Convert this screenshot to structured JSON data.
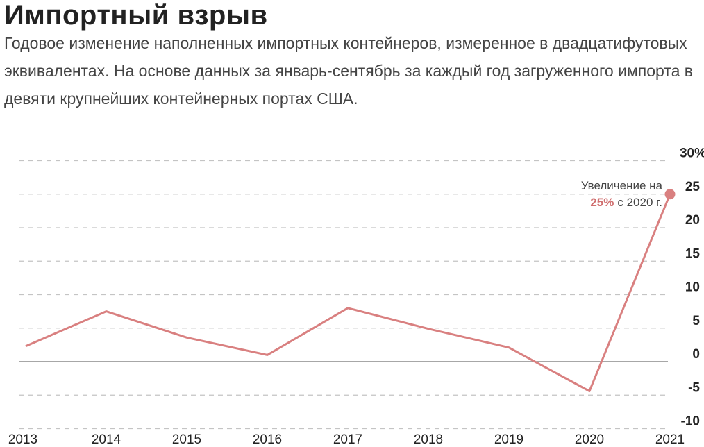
{
  "header": {
    "title": "Импортный взрыв",
    "subtitle": "Годовое изменение наполненных импортных контейнеров, измеренное в двадцатифутовых эквивалентах. На основе данных за январь-сентябрь за каждый год загруженного импорта в девяти крупнейших контейнерных портах США."
  },
  "chart_data": {
    "type": "line",
    "x": [
      "2013",
      "2014",
      "2015",
      "2016",
      "2017",
      "2018",
      "2019",
      "2020",
      "2021"
    ],
    "series": [
      {
        "values": [
          2.3,
          7.5,
          3.6,
          1.0,
          8.0,
          4.9,
          2.1,
          -4.4,
          25
        ]
      }
    ],
    "ylim": [
      -10,
      30
    ],
    "yticks": [
      "-10",
      "-5",
      "0",
      "5",
      "10",
      "15",
      "20",
      "25",
      "30%"
    ],
    "grid": true,
    "color": "#d98080",
    "annotation": {
      "line1": "Увеличение на",
      "highlight": "25%",
      "line2_rest": "с 2020 г."
    }
  }
}
